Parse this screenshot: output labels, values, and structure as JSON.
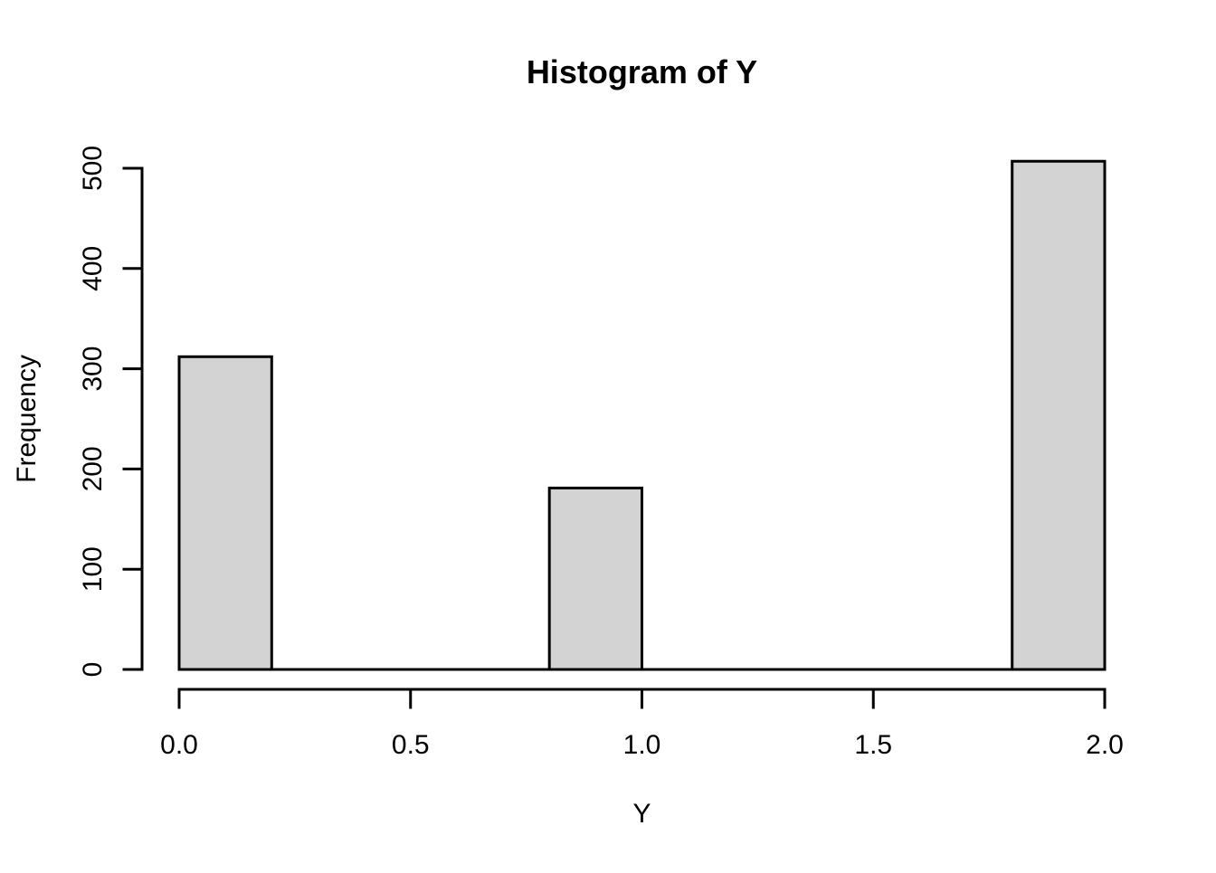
{
  "chart_data": {
    "type": "bar",
    "chart_style": "r-base-histogram",
    "title": "Histogram of Y",
    "xlabel": "Y",
    "ylabel": "Frequency",
    "bin_breaks": [
      0.0,
      0.2,
      0.4,
      0.6,
      0.8,
      1.0,
      1.2,
      1.4,
      1.6,
      1.8,
      2.0
    ],
    "counts": [
      312,
      0,
      0,
      0,
      181,
      0,
      0,
      0,
      0,
      507
    ],
    "nonzero_bins": [
      {
        "x0": 0.0,
        "x1": 0.2,
        "count": 312
      },
      {
        "x0": 0.8,
        "x1": 1.0,
        "count": 181
      },
      {
        "x0": 1.8,
        "x1": 2.0,
        "count": 507
      }
    ],
    "xlim": [
      0.0,
      2.0
    ],
    "ylim": [
      0,
      500
    ],
    "x_ticks": [
      {
        "value": 0.0,
        "label": "0.0"
      },
      {
        "value": 0.5,
        "label": "0.5"
      },
      {
        "value": 1.0,
        "label": "1.0"
      },
      {
        "value": 1.5,
        "label": "1.5"
      },
      {
        "value": 2.0,
        "label": "2.0"
      }
    ],
    "y_ticks": [
      {
        "value": 0,
        "label": "0"
      },
      {
        "value": 100,
        "label": "100"
      },
      {
        "value": 200,
        "label": "200"
      },
      {
        "value": 300,
        "label": "300"
      },
      {
        "value": 400,
        "label": "400"
      },
      {
        "value": 500,
        "label": "500"
      }
    ],
    "grid": "off",
    "legend": "none",
    "colors": {
      "bar_fill": "#d3d3d3",
      "bar_stroke": "#000000",
      "axis": "#000000",
      "text": "#000000",
      "background": "#ffffff"
    }
  }
}
